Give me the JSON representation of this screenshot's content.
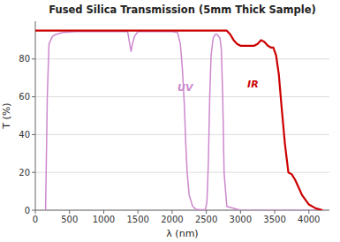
{
  "chart_data": {
    "type": "line",
    "title": "Fused Silica Transmission (5mm Thick Sample)",
    "x_label": "λ (nm)",
    "y_label": "T (%)",
    "xlim": [
      0,
      4300
    ],
    "ylim": [
      0,
      100
    ],
    "xticks": [
      0,
      500,
      1000,
      1500,
      2000,
      2500,
      3000,
      3500,
      4000
    ],
    "yticks": [
      0,
      20,
      40,
      60,
      80
    ],
    "grid": true,
    "series": [
      {
        "color": "#cc88cc",
        "x": [
          150,
          175,
          200,
          250,
          300,
          400,
          600,
          900,
          1200,
          1350,
          1380,
          1400,
          1420,
          1450,
          1500,
          1800,
          2000,
          2080,
          2120,
          2150,
          2180,
          2200,
          2220,
          2250,
          2300,
          2350,
          2400,
          2450,
          2470,
          2490,
          2510,
          2530,
          2550,
          2570,
          2600,
          2630,
          2660,
          2700,
          2720,
          2740,
          2760,
          2800,
          3000,
          3500,
          4200
        ],
        "values": [
          0,
          60,
          88,
          92,
          93,
          94,
          94.5,
          94.5,
          94.5,
          94.5,
          88,
          84,
          88,
          92,
          94.5,
          94.5,
          94.5,
          94,
          88,
          75,
          55,
          35,
          20,
          8,
          2,
          0.5,
          0.3,
          0.2,
          0.2,
          0.5,
          5,
          25,
          60,
          82,
          91,
          93,
          93,
          91,
          85,
          60,
          20,
          2,
          0,
          0,
          0
        ]
      },
      {
        "color": "#cc0000",
        "x": [
          0,
          200,
          500,
          1000,
          1500,
          2000,
          2500,
          2800,
          2850,
          2900,
          2950,
          3000,
          3050,
          3100,
          3150,
          3200,
          3250,
          3300,
          3350,
          3400,
          3450,
          3480,
          3520,
          3560,
          3600,
          3650,
          3700,
          3750,
          3800,
          3850,
          3900,
          4000,
          4100,
          4200
        ],
        "values": [
          95,
          95,
          95,
          95,
          95,
          95,
          95,
          95,
          93,
          90,
          88,
          87,
          87,
          87,
          87,
          87,
          88,
          90,
          89,
          87,
          86,
          86,
          82,
          72,
          55,
          35,
          20,
          19,
          16,
          12,
          8,
          3,
          1,
          0
        ]
      }
    ],
    "annotations": [
      {
        "text": "UV",
        "x": 2080,
        "y": 63,
        "color": "#cc88cc"
      },
      {
        "text": "IR",
        "x": 3100,
        "y": 65,
        "color": "#cc0000"
      }
    ]
  }
}
